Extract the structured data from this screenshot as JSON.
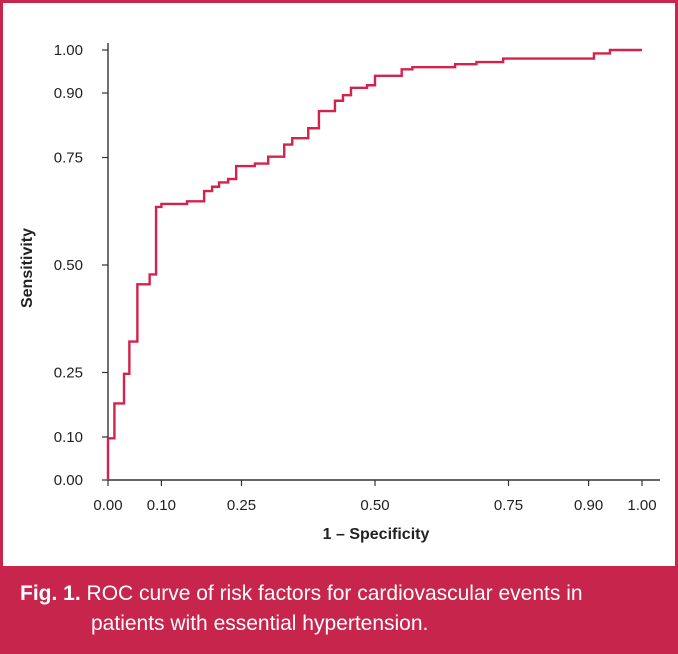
{
  "chart_data": {
    "type": "line",
    "title": "",
    "xlabel": "1 – Specificity",
    "ylabel": "Sensitivity",
    "xlim": [
      0,
      1
    ],
    "ylim": [
      0,
      1
    ],
    "grid": false,
    "x_ticks": [
      {
        "value": 0.0,
        "label": "0.00"
      },
      {
        "value": 0.1,
        "label": "0.10"
      },
      {
        "value": 0.25,
        "label": "0.25"
      },
      {
        "value": 0.5,
        "label": "0.50"
      },
      {
        "value": 0.75,
        "label": "0.75"
      },
      {
        "value": 0.9,
        "label": "0.90"
      },
      {
        "value": 1.0,
        "label": "1.00"
      }
    ],
    "y_ticks": [
      {
        "value": 0.0,
        "label": "0.00"
      },
      {
        "value": 0.1,
        "label": "0.10"
      },
      {
        "value": 0.25,
        "label": "0.25"
      },
      {
        "value": 0.5,
        "label": "0.50"
      },
      {
        "value": 0.75,
        "label": "0.75"
      },
      {
        "value": 0.9,
        "label": "0.90"
      },
      {
        "value": 1.0,
        "label": "1.00"
      }
    ],
    "series": [
      {
        "name": "ROC curve",
        "color": "#d4224b",
        "step": true,
        "points": [
          [
            0.0,
            0.0
          ],
          [
            0.0,
            0.097
          ],
          [
            0.012,
            0.097
          ],
          [
            0.012,
            0.178
          ],
          [
            0.03,
            0.178
          ],
          [
            0.03,
            0.247
          ],
          [
            0.04,
            0.247
          ],
          [
            0.04,
            0.322
          ],
          [
            0.055,
            0.322
          ],
          [
            0.055,
            0.455
          ],
          [
            0.078,
            0.455
          ],
          [
            0.078,
            0.478
          ],
          [
            0.09,
            0.478
          ],
          [
            0.09,
            0.635
          ],
          [
            0.1,
            0.635
          ],
          [
            0.1,
            0.642
          ],
          [
            0.148,
            0.642
          ],
          [
            0.148,
            0.648
          ],
          [
            0.18,
            0.648
          ],
          [
            0.18,
            0.672
          ],
          [
            0.195,
            0.672
          ],
          [
            0.195,
            0.682
          ],
          [
            0.208,
            0.682
          ],
          [
            0.208,
            0.692
          ],
          [
            0.225,
            0.692
          ],
          [
            0.225,
            0.7
          ],
          [
            0.24,
            0.7
          ],
          [
            0.24,
            0.73
          ],
          [
            0.275,
            0.73
          ],
          [
            0.275,
            0.736
          ],
          [
            0.3,
            0.736
          ],
          [
            0.3,
            0.752
          ],
          [
            0.33,
            0.752
          ],
          [
            0.33,
            0.78
          ],
          [
            0.345,
            0.78
          ],
          [
            0.345,
            0.795
          ],
          [
            0.375,
            0.795
          ],
          [
            0.375,
            0.818
          ],
          [
            0.395,
            0.818
          ],
          [
            0.395,
            0.858
          ],
          [
            0.425,
            0.858
          ],
          [
            0.425,
            0.882
          ],
          [
            0.44,
            0.882
          ],
          [
            0.44,
            0.895
          ],
          [
            0.455,
            0.895
          ],
          [
            0.455,
            0.912
          ],
          [
            0.485,
            0.912
          ],
          [
            0.485,
            0.918
          ],
          [
            0.5,
            0.918
          ],
          [
            0.5,
            0.94
          ],
          [
            0.55,
            0.94
          ],
          [
            0.55,
            0.955
          ],
          [
            0.57,
            0.955
          ],
          [
            0.57,
            0.96
          ],
          [
            0.65,
            0.96
          ],
          [
            0.65,
            0.967
          ],
          [
            0.69,
            0.967
          ],
          [
            0.69,
            0.972
          ],
          [
            0.74,
            0.972
          ],
          [
            0.74,
            0.98
          ],
          [
            0.91,
            0.98
          ],
          [
            0.91,
            0.992
          ],
          [
            0.94,
            0.992
          ],
          [
            0.94,
            1.0
          ],
          [
            1.0,
            1.0
          ]
        ]
      }
    ]
  },
  "caption": {
    "label": "Fig. 1.",
    "line1": "ROC curve of risk factors for cardiovascular events in",
    "line2": "patients with essential hypertension."
  }
}
